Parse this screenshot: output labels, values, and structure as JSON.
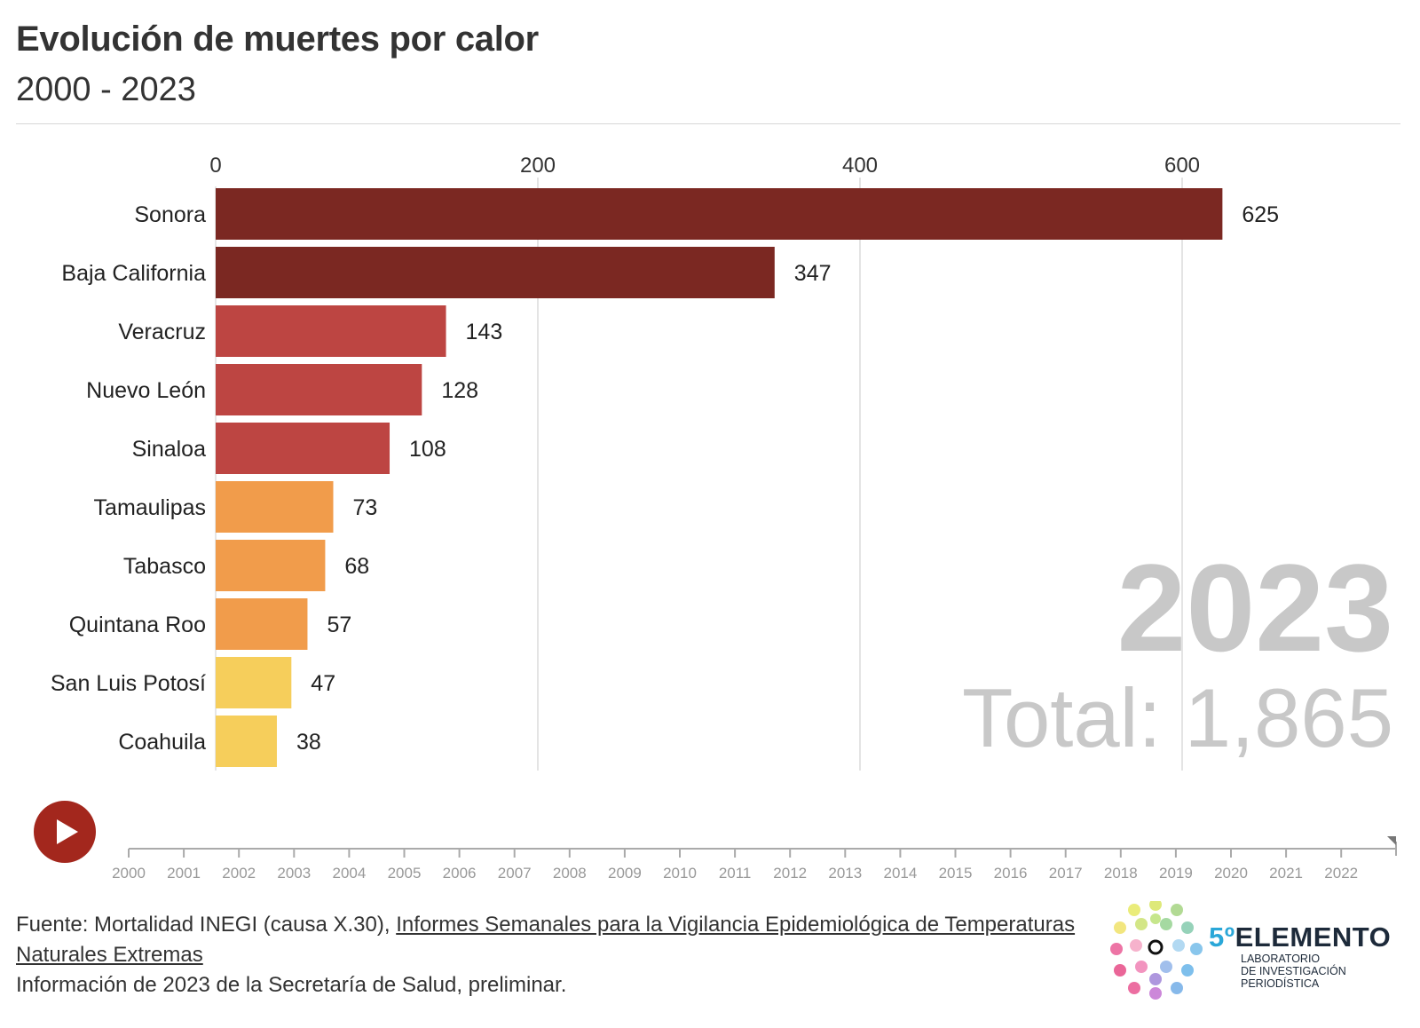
{
  "header": {
    "title": "Evolución de muertes por calor",
    "subtitle": "2000 - 2023"
  },
  "chart_data": {
    "type": "bar",
    "orientation": "horizontal",
    "title": "Evolución de muertes por calor",
    "subtitle": "2000 - 2023",
    "categories": [
      "Sonora",
      "Baja California",
      "Veracruz",
      "Nuevo León",
      "Sinaloa",
      "Tamaulipas",
      "Tabasco",
      "Quintana Roo",
      "San Luis Potosí",
      "Coahuila"
    ],
    "values": [
      625,
      347,
      143,
      128,
      108,
      73,
      68,
      57,
      47,
      38
    ],
    "value_labels": [
      "625",
      "347",
      "143",
      "128",
      "108",
      "73",
      "68",
      "57",
      "47",
      "38"
    ],
    "bar_colors": [
      "#7b2822",
      "#7b2822",
      "#bd4542",
      "#bd4542",
      "#bd4542",
      "#f19c4b",
      "#f19c4b",
      "#f19c4b",
      "#f6ce5b",
      "#f6ce5b"
    ],
    "xlim": [
      0,
      700
    ],
    "x_ticks": [
      0,
      200,
      400,
      600
    ],
    "x_tick_labels": [
      "0",
      "200",
      "400",
      "600"
    ],
    "axis_position": "top",
    "grid": true,
    "current_year": "2023",
    "total_label": "Total: 1,865"
  },
  "timeline": {
    "years": [
      "2000",
      "2001",
      "2002",
      "2003",
      "2004",
      "2005",
      "2006",
      "2007",
      "2008",
      "2009",
      "2010",
      "2011",
      "2012",
      "2013",
      "2014",
      "2015",
      "2016",
      "2017",
      "2018",
      "2019",
      "2020",
      "2021",
      "2022"
    ],
    "current": "2023",
    "play_icon": "play-icon"
  },
  "footer": {
    "source_prefix": "Fuente: Mortalidad INEGI (causa X.30), ",
    "source_link": "Informes Semanales para la Vigilancia Epidemiológica de Temperaturas Naturales Extremas",
    "note": "Información de 2023 de la Secretaría de Salud, preliminar."
  },
  "logo": {
    "number": "5º",
    "name": "ELEMENTO",
    "tagline": [
      "LABORATORIO",
      "DE INVESTIGACIÓN",
      "PERIODÍSTICA"
    ]
  },
  "colors": {
    "bar_dark": "#7b2822",
    "bar_red": "#bd4542",
    "bar_orange": "#f19c4b",
    "bar_yellow": "#f6ce5b",
    "play": "#a3271d",
    "watermark": "#c8c8c8"
  }
}
